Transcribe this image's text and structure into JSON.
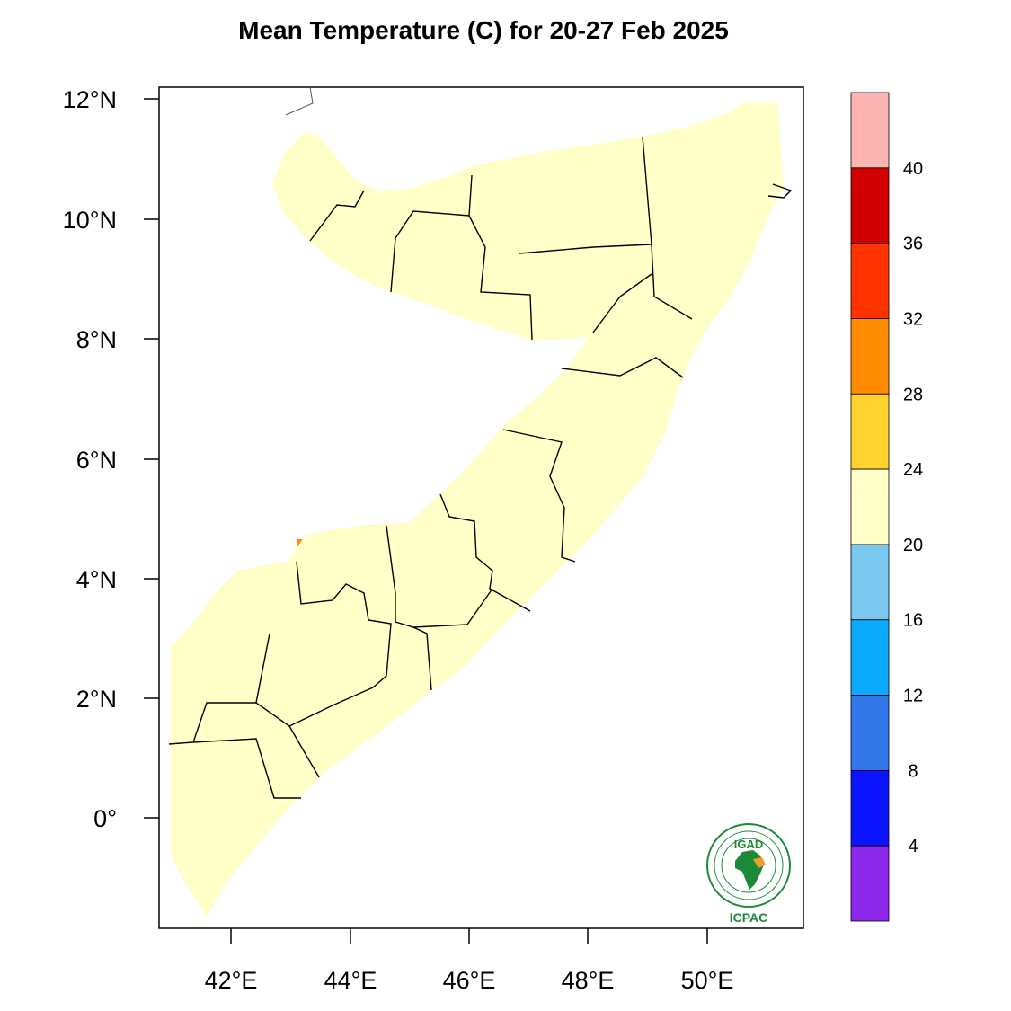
{
  "title": "Mean Temperature (C) for 20-27 Feb 2025",
  "map": {
    "lat_ticks": [
      "12°N",
      "10°N",
      "8°N",
      "6°N",
      "4°N",
      "2°N",
      "0°"
    ],
    "lon_ticks": [
      "42°E",
      "44°E",
      "46°E",
      "48°E",
      "50°E"
    ],
    "lat_range": [
      -1.8,
      12.2
    ],
    "lon_range": [
      40.8,
      51.6
    ]
  },
  "colorbar": {
    "labels": [
      "40",
      "36",
      "32",
      "28",
      "24",
      "20",
      "16",
      "12",
      "8",
      "4"
    ],
    "colors": [
      "#ffb4b4",
      "#d20000",
      "#ff3200",
      "#ff8c00",
      "#ffd22d",
      "#ffffc8",
      "#78c8f0",
      "#0aaaff",
      "#3278eb",
      "#0a14ff",
      "#8c28eb"
    ]
  },
  "legend_colors": {
    "c16_20": "#78c8f0",
    "c20_24": "#ffffc8",
    "c24_28": "#ffd22d",
    "c28_32": "#ff8c00"
  },
  "logo": {
    "top_text": "IGAD",
    "bottom_text": "ICPAC"
  }
}
